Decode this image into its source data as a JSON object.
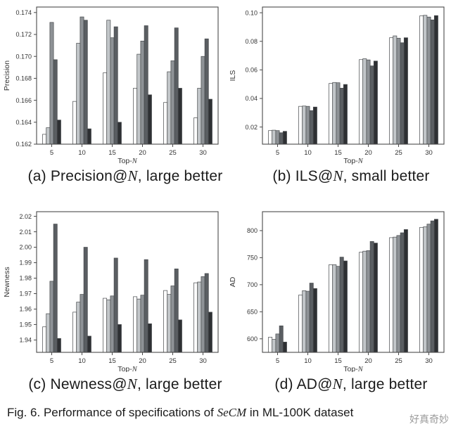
{
  "figure": {
    "subcaptions": [
      {
        "pre": "(a) Precision@",
        "math": "N",
        "post": ", large better"
      },
      {
        "pre": "(b) ILS@",
        "math": "N",
        "post": ", small better"
      },
      {
        "pre": "(c) Newness@",
        "math": "N",
        "post": ", large better"
      },
      {
        "pre": "(d) AD@",
        "math": "N",
        "post": ", large better"
      }
    ],
    "caption": {
      "pre": "Fig. 6. Performance of specifications of ",
      "math": "SeCM",
      "post": " in ML-100K dataset"
    },
    "watermark": "好真奇妙"
  },
  "palette": {
    "bar_colors": [
      "#ffffff",
      "#c2c6c9",
      "#8e9296",
      "#5a5e62",
      "#2e3033"
    ],
    "bar_edge": "#45484b",
    "axis_color": "#4a4a4a",
    "tick_text_color": "#333333",
    "caption_color": "#1b1b1b",
    "watermark_color": "#9b9b9b"
  },
  "chart_data": [
    {
      "id": "precision",
      "type": "bar",
      "xlabel": "Top-N",
      "ylabel": "Precision",
      "categories": [
        "5",
        "10",
        "15",
        "20",
        "25",
        "30"
      ],
      "ylim": [
        0.162,
        0.1745
      ],
      "yticks": [
        0.162,
        0.164,
        0.166,
        0.168,
        0.17,
        0.172,
        0.174
      ],
      "ytick_decimals": 3,
      "grid": false,
      "legend": "none",
      "series": [
        {
          "values": [
            0.1629,
            0.1659,
            0.1685,
            0.1671,
            0.1658,
            0.1644
          ]
        },
        {
          "values": [
            0.1635,
            0.1712,
            0.1733,
            0.1702,
            0.1686,
            0.1671
          ]
        },
        {
          "values": [
            0.1731,
            0.1736,
            0.1717,
            0.1714,
            0.1696,
            0.17
          ]
        },
        {
          "values": [
            0.1697,
            0.1733,
            0.1727,
            0.1728,
            0.1726,
            0.1716
          ]
        },
        {
          "values": [
            0.1642,
            0.1634,
            0.164,
            0.1665,
            0.1671,
            0.1661
          ]
        }
      ]
    },
    {
      "id": "ils",
      "type": "bar",
      "xlabel": "Top-N",
      "ylabel": "ILS",
      "categories": [
        "5",
        "10",
        "15",
        "20",
        "25",
        "30"
      ],
      "ylim": [
        0.008,
        0.104
      ],
      "yticks": [
        0.02,
        0.04,
        0.06,
        0.08,
        0.1
      ],
      "ytick_decimals": 2,
      "grid": false,
      "legend": "none",
      "series": [
        {
          "values": [
            0.0175,
            0.0345,
            0.0505,
            0.0672,
            0.0825,
            0.0978
          ]
        },
        {
          "values": [
            0.0178,
            0.0347,
            0.0512,
            0.0678,
            0.0838,
            0.0982
          ]
        },
        {
          "values": [
            0.0175,
            0.0345,
            0.051,
            0.067,
            0.0822,
            0.097
          ]
        },
        {
          "values": [
            0.016,
            0.0315,
            0.0472,
            0.0628,
            0.079,
            0.095
          ]
        },
        {
          "values": [
            0.017,
            0.034,
            0.0498,
            0.0662,
            0.0825,
            0.098
          ]
        }
      ]
    },
    {
      "id": "newness",
      "type": "bar",
      "xlabel": "Top-N",
      "ylabel": "Newness",
      "categories": [
        "5",
        "10",
        "15",
        "20",
        "25",
        "30"
      ],
      "ylim": [
        1.932,
        2.023
      ],
      "yticks": [
        1.94,
        1.95,
        1.96,
        1.97,
        1.98,
        1.99,
        2.0,
        2.01,
        2.02
      ],
      "ytick_decimals": 2,
      "grid": false,
      "legend": "none",
      "series": [
        {
          "values": [
            1.9485,
            1.958,
            1.967,
            1.968,
            1.972,
            1.977
          ]
        },
        {
          "values": [
            1.957,
            1.9645,
            1.966,
            1.9665,
            1.9695,
            1.9775
          ]
        },
        {
          "values": [
            1.978,
            1.9695,
            1.9685,
            1.969,
            1.975,
            1.981
          ]
        },
        {
          "values": [
            2.015,
            2.0,
            1.993,
            1.992,
            1.986,
            1.983
          ]
        },
        {
          "values": [
            1.941,
            1.9425,
            1.95,
            1.9505,
            1.953,
            1.958
          ]
        }
      ]
    },
    {
      "id": "ad",
      "type": "bar",
      "xlabel": "Top-N",
      "ylabel": "AD",
      "categories": [
        "5",
        "10",
        "15",
        "20",
        "25",
        "30"
      ],
      "ylim": [
        575,
        835
      ],
      "yticks": [
        600,
        650,
        700,
        750,
        800
      ],
      "ytick_decimals": 0,
      "grid": false,
      "legend": "none",
      "series": [
        {
          "values": [
            603,
            681,
            737,
            760,
            787,
            806
          ]
        },
        {
          "values": [
            599,
            689,
            737,
            762,
            788,
            807
          ]
        },
        {
          "values": [
            609,
            688,
            734,
            763,
            791,
            812
          ]
        },
        {
          "values": [
            624,
            703,
            751,
            780,
            796,
            818
          ]
        },
        {
          "values": [
            594,
            693,
            744,
            777,
            802,
            821
          ]
        }
      ]
    }
  ]
}
